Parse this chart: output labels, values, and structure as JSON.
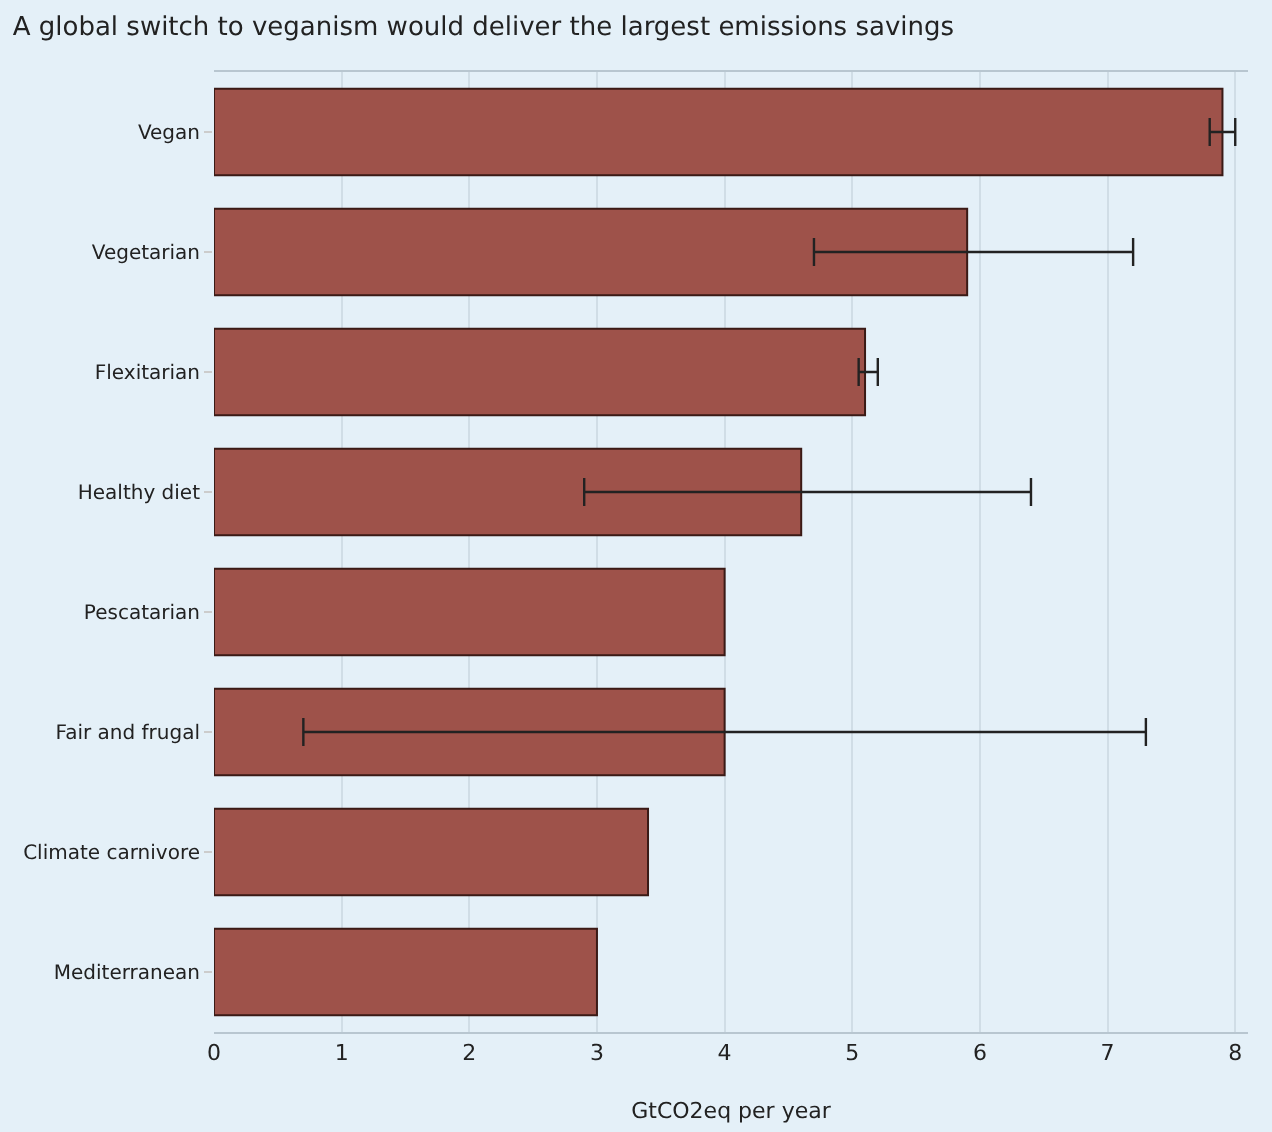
{
  "chart_data": {
    "type": "bar",
    "orientation": "horizontal",
    "title": "A global switch to veganism would deliver the largest emissions savings",
    "xlabel": "GtCO2eq per year",
    "categories": [
      "Vegan",
      "Vegetarian",
      "Flexitarian",
      "Healthy diet",
      "Pescatarian",
      "Fair and frugal",
      "Climate carnivore",
      "Mediterranean"
    ],
    "values": [
      7.9,
      5.9,
      5.1,
      4.6,
      4.0,
      4.0,
      3.4,
      3.0
    ],
    "errors": [
      [
        7.8,
        8.0
      ],
      [
        4.7,
        7.2
      ],
      [
        5.05,
        5.2
      ],
      [
        2.9,
        6.4
      ],
      null,
      [
        0.7,
        7.3
      ],
      null,
      null
    ],
    "color": "#9e524a",
    "xlim": [
      0,
      8.1
    ],
    "xticks": [
      0,
      1,
      2,
      3,
      4,
      5,
      6,
      7,
      8
    ],
    "grid": "x"
  }
}
